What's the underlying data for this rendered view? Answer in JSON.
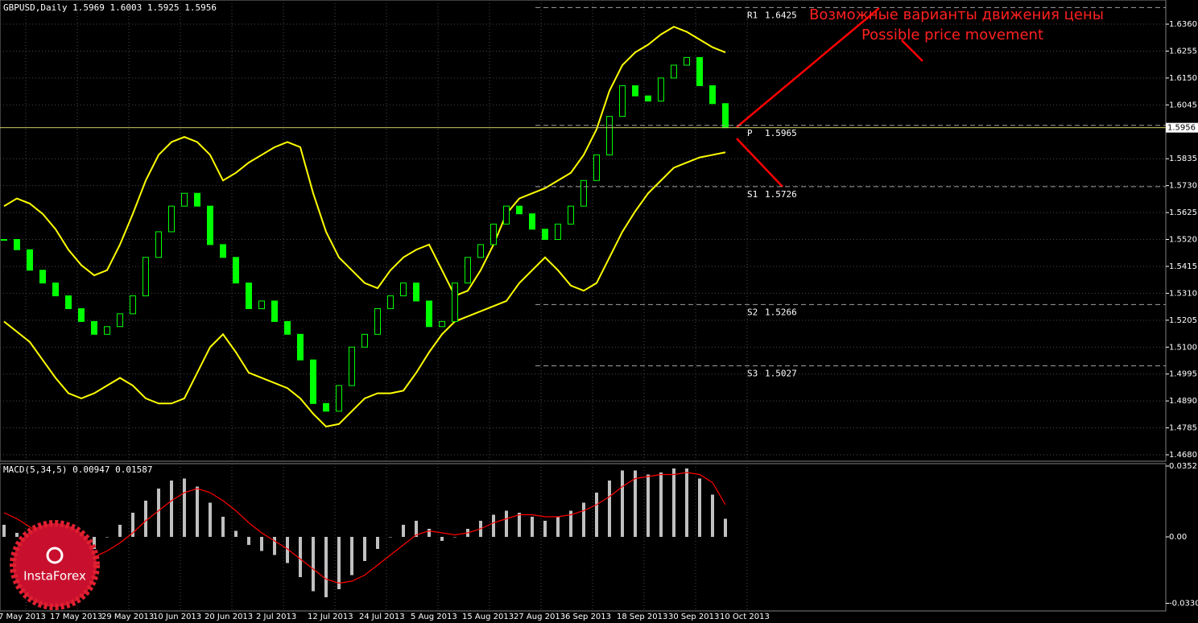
{
  "header": {
    "symbol": "GBPUSD,Daily",
    "open": 1.5969,
    "high": 1.6003,
    "low": 1.5925,
    "close": 1.5956
  },
  "chart_data": [
    {
      "type": "candlestick",
      "color": "#00ff00",
      "grid": true,
      "ylim": [
        1.4658,
        1.6448
      ],
      "yticks": [
        {
          "value": 1.636,
          "label": "1.6360"
        },
        1.6255,
        {
          "value": 1.615,
          "label": "1.6150"
        },
        1.6045,
        1.5835,
        {
          "value": 1.573,
          "label": "1.5730"
        },
        1.5625,
        {
          "value": 1.552,
          "label": "1.5520"
        },
        1.5415,
        {
          "value": 1.531,
          "label": "1.5310"
        },
        1.5205,
        {
          "value": 1.51,
          "label": "1.5100"
        },
        1.4995,
        {
          "value": 1.489,
          "label": "1.4890"
        },
        1.4785,
        {
          "value": 1.468,
          "label": "1.4680"
        }
      ],
      "current_price": 1.5956,
      "x_labels": [
        "7 May 2013",
        "17 May 2013",
        "29 May 2013",
        "10 Jun 2013",
        "20 Jun 2013",
        "2 Jul 2013",
        "12 Jul 2013",
        "24 Jul 2013",
        "5 Aug 2013",
        "15 Aug 2013",
        "27 Aug 2013",
        "6 Sep 2013",
        "18 Sep 2013",
        "30 Sep 2013",
        "10 Oct 2013"
      ],
      "closes": [
        1.552,
        1.548,
        1.54,
        1.535,
        1.53,
        1.525,
        1.52,
        1.515,
        1.518,
        1.523,
        1.53,
        1.545,
        1.555,
        1.565,
        1.57,
        1.565,
        1.55,
        1.545,
        1.535,
        1.525,
        1.528,
        1.52,
        1.515,
        1.505,
        1.488,
        1.485,
        1.495,
        1.51,
        1.515,
        1.525,
        1.53,
        1.535,
        1.528,
        1.518,
        1.52,
        1.535,
        1.545,
        1.55,
        1.558,
        1.565,
        1.562,
        1.556,
        1.552,
        1.558,
        1.565,
        1.575,
        1.585,
        1.6,
        1.612,
        1.608,
        1.606,
        1.615,
        1.62,
        1.623,
        1.612,
        1.605,
        1.5956
      ],
      "bands": {
        "color": "#ffff00",
        "upper": [
          1.565,
          1.568,
          1.566,
          1.562,
          1.556,
          1.548,
          1.542,
          1.538,
          1.54,
          1.55,
          1.562,
          1.575,
          1.585,
          1.59,
          1.592,
          1.59,
          1.585,
          1.575,
          1.578,
          1.582,
          1.585,
          1.588,
          1.59,
          1.588,
          1.57,
          1.555,
          1.545,
          1.54,
          1.535,
          1.533,
          1.54,
          1.545,
          1.548,
          1.55,
          1.54,
          1.53,
          1.532,
          1.54,
          1.55,
          1.562,
          1.568,
          1.57,
          1.572,
          1.575,
          1.578,
          1.585,
          1.595,
          1.61,
          1.62,
          1.625,
          1.628,
          1.632,
          1.635,
          1.633,
          1.63,
          1.627,
          1.625
        ],
        "lower": [
          1.52,
          1.516,
          1.512,
          1.505,
          1.498,
          1.492,
          1.49,
          1.492,
          1.495,
          1.498,
          1.495,
          1.49,
          1.488,
          1.488,
          1.49,
          1.5,
          1.51,
          1.515,
          1.508,
          1.5,
          1.498,
          1.496,
          1.494,
          1.49,
          1.484,
          1.479,
          1.48,
          1.485,
          1.49,
          1.492,
          1.492,
          1.493,
          1.5,
          1.508,
          1.515,
          1.52,
          1.522,
          1.524,
          1.526,
          1.528,
          1.535,
          1.54,
          1.545,
          1.54,
          1.534,
          1.532,
          1.535,
          1.545,
          1.555,
          1.563,
          1.57,
          1.575,
          1.58,
          1.582,
          1.584,
          1.585,
          1.586
        ]
      },
      "pivots": [
        {
          "label": "R1",
          "value": 1.6425
        },
        {
          "label": "P",
          "value": 1.5965
        },
        {
          "label": "S1",
          "value": 1.5726
        },
        {
          "label": "S2",
          "value": 1.5266
        },
        {
          "label": "S3",
          "value": 1.5027
        }
      ],
      "annotations": [
        "Возможные варианты движения цены",
        "Possible price movement"
      ]
    },
    {
      "type": "macd",
      "title": "MACD(5,34,5)",
      "macd_value": 0.00947,
      "signal_value": 0.01587,
      "ylim": [
        -0.0364,
        0.0364
      ],
      "yticks": [
        0.03521,
        {
          "value": 0,
          "label": "0.00"
        },
        -0.03301
      ],
      "histogram_color": "#c0c0c0",
      "signal_color": "#ff0000",
      "histogram": [
        0.006,
        0.002,
        -0.004,
        -0.01,
        -0.015,
        -0.016,
        -0.012,
        -0.006,
        0.0,
        0.006,
        0.012,
        0.018,
        0.024,
        0.028,
        0.029,
        0.025,
        0.017,
        0.01,
        0.003,
        -0.004,
        -0.007,
        -0.009,
        -0.013,
        -0.02,
        -0.027,
        -0.03,
        -0.026,
        -0.019,
        -0.012,
        -0.006,
        0.0,
        0.006,
        0.008,
        0.004,
        -0.002,
        0.0,
        0.004,
        0.008,
        0.011,
        0.013,
        0.012,
        0.01,
        0.008,
        0.01,
        0.013,
        0.017,
        0.022,
        0.028,
        0.033,
        0.033,
        0.031,
        0.032,
        0.034,
        0.034,
        0.029,
        0.021,
        0.009
      ],
      "signal": [
        0.012,
        0.009,
        0.005,
        0.0,
        -0.005,
        -0.009,
        -0.011,
        -0.01,
        -0.007,
        -0.003,
        0.002,
        0.008,
        0.013,
        0.018,
        0.022,
        0.024,
        0.022,
        0.018,
        0.013,
        0.007,
        0.002,
        -0.002,
        -0.006,
        -0.011,
        -0.016,
        -0.021,
        -0.023,
        -0.022,
        -0.019,
        -0.014,
        -0.009,
        -0.004,
        0.001,
        0.003,
        0.002,
        0.001,
        0.002,
        0.004,
        0.007,
        0.009,
        0.011,
        0.011,
        0.01,
        0.01,
        0.011,
        0.013,
        0.016,
        0.02,
        0.025,
        0.029,
        0.03,
        0.031,
        0.031,
        0.032,
        0.031,
        0.027,
        0.016
      ]
    }
  ],
  "logo": "InstaForex"
}
